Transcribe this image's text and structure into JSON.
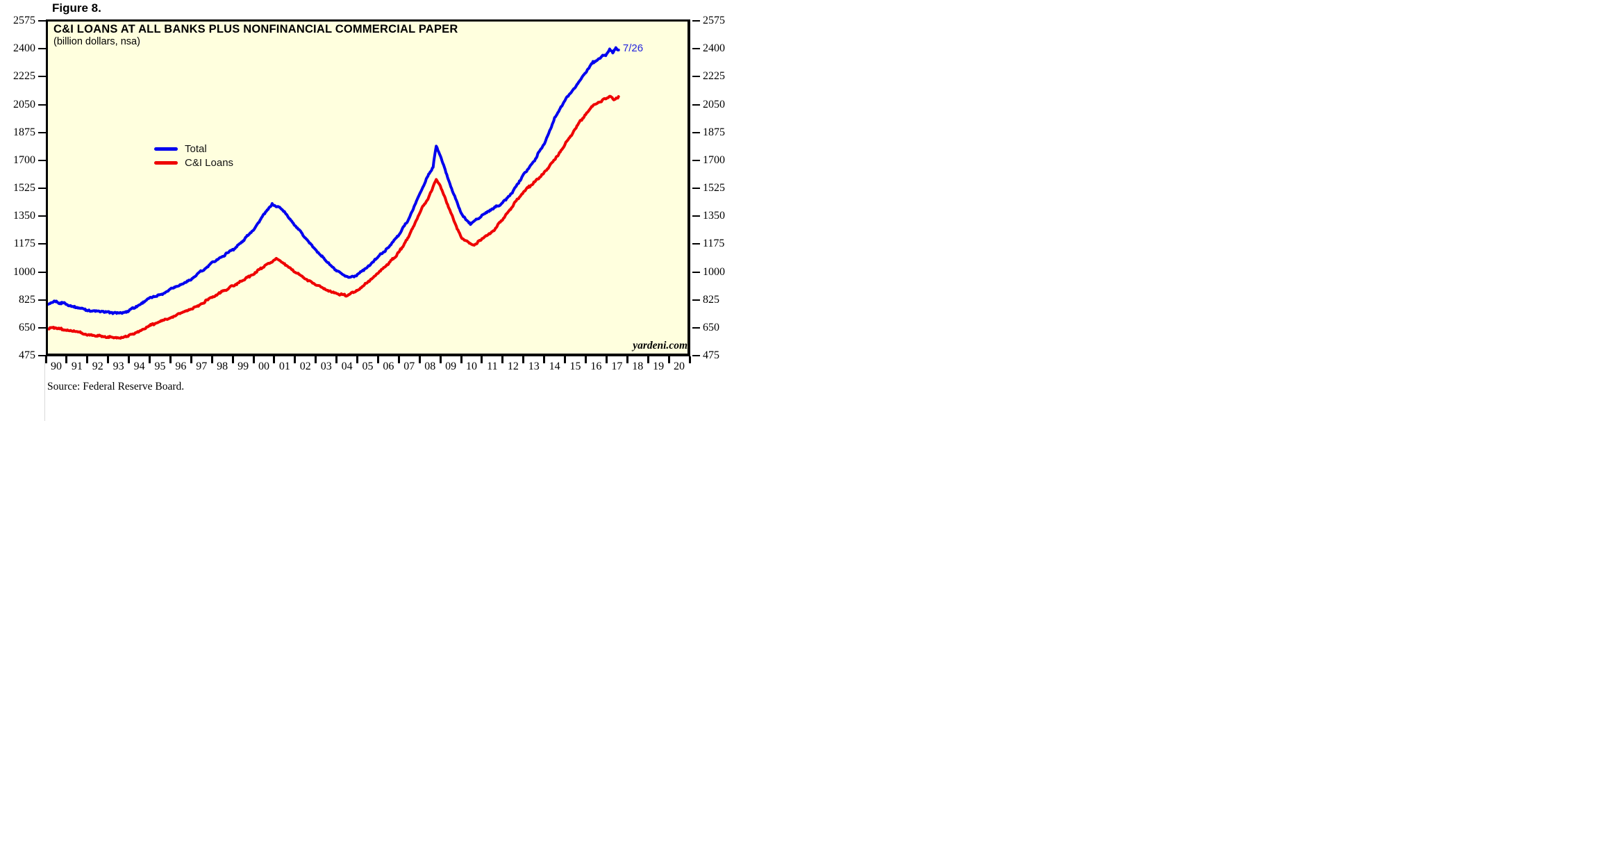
{
  "figure_label": "Figure 8.",
  "chart": {
    "title": "C&I LOANS AT ALL BANKS PLUS NONFINANCIAL COMMERCIAL PAPER",
    "subtitle": "(billion dollars, nsa)",
    "watermark": "yardeni.com",
    "source_note": "Source: Federal Reserve Board.",
    "colors": {
      "plot_background": "#ffffde",
      "axis": "#000000",
      "total_line": "#0000ee",
      "ci_loans_line": "#ee0000",
      "annotation_text": "#2222dd"
    }
  },
  "chart_data": {
    "type": "line",
    "title": "C&I LOANS AT ALL BANKS PLUS NONFINANCIAL COMMERCIAL PAPER",
    "subtitle": "(billion dollars, nsa)",
    "grid": false,
    "legend_position": "inside-upper-left",
    "x_axis": {
      "unit": "year",
      "start": 1990,
      "end": 2021,
      "tick_labels": [
        "90",
        "91",
        "92",
        "93",
        "94",
        "95",
        "96",
        "97",
        "98",
        "99",
        "00",
        "01",
        "02",
        "03",
        "04",
        "05",
        "06",
        "07",
        "08",
        "09",
        "10",
        "11",
        "12",
        "13",
        "14",
        "15",
        "16",
        "17",
        "18",
        "19",
        "20"
      ]
    },
    "y_axis": {
      "min": 475,
      "max": 2575,
      "tick_interval": 175,
      "ticks": [
        2575,
        2400,
        2225,
        2050,
        1875,
        1700,
        1525,
        1350,
        1175,
        1000,
        825,
        650,
        475
      ],
      "label_sides": "both"
    },
    "annotation": {
      "text": "7/26",
      "series": "Total",
      "x": 2017.62,
      "y": 2400
    },
    "series": [
      {
        "name": "Total",
        "color": "#0000ee",
        "points": [
          [
            1990.0,
            795
          ],
          [
            1990.4,
            812
          ],
          [
            1991.0,
            800
          ],
          [
            1991.5,
            775
          ],
          [
            1992.0,
            760
          ],
          [
            1992.5,
            752
          ],
          [
            1993.0,
            745
          ],
          [
            1993.6,
            740
          ],
          [
            1994.0,
            758
          ],
          [
            1994.5,
            795
          ],
          [
            1995.0,
            838
          ],
          [
            1995.5,
            856
          ],
          [
            1996.0,
            892
          ],
          [
            1996.5,
            920
          ],
          [
            1997.0,
            955
          ],
          [
            1997.5,
            1005
          ],
          [
            1998.0,
            1055
          ],
          [
            1998.5,
            1098
          ],
          [
            1999.0,
            1140
          ],
          [
            1999.5,
            1195
          ],
          [
            2000.0,
            1265
          ],
          [
            2000.5,
            1360
          ],
          [
            2000.9,
            1425
          ],
          [
            2001.3,
            1398
          ],
          [
            2001.6,
            1360
          ],
          [
            2002.0,
            1290
          ],
          [
            2002.5,
            1215
          ],
          [
            2003.0,
            1140
          ],
          [
            2003.5,
            1065
          ],
          [
            2004.0,
            1008
          ],
          [
            2004.6,
            962
          ],
          [
            2005.0,
            985
          ],
          [
            2005.5,
            1035
          ],
          [
            2006.0,
            1095
          ],
          [
            2006.5,
            1155
          ],
          [
            2007.0,
            1230
          ],
          [
            2007.5,
            1340
          ],
          [
            2008.0,
            1490
          ],
          [
            2008.4,
            1600
          ],
          [
            2008.65,
            1660
          ],
          [
            2008.8,
            1788
          ],
          [
            2009.0,
            1730
          ],
          [
            2009.5,
            1540
          ],
          [
            2010.0,
            1365
          ],
          [
            2010.45,
            1298
          ],
          [
            2011.0,
            1355
          ],
          [
            2011.5,
            1392
          ],
          [
            2012.0,
            1432
          ],
          [
            2012.5,
            1505
          ],
          [
            2013.0,
            1610
          ],
          [
            2013.5,
            1695
          ],
          [
            2014.0,
            1805
          ],
          [
            2014.5,
            1965
          ],
          [
            2015.0,
            2080
          ],
          [
            2015.5,
            2160
          ],
          [
            2016.0,
            2250
          ],
          [
            2016.35,
            2315
          ],
          [
            2016.7,
            2345
          ],
          [
            2017.0,
            2365
          ],
          [
            2017.15,
            2395
          ],
          [
            2017.3,
            2372
          ],
          [
            2017.45,
            2400
          ],
          [
            2017.58,
            2392
          ]
        ]
      },
      {
        "name": "C&I Loans",
        "color": "#ee0000",
        "points": [
          [
            1990.0,
            642
          ],
          [
            1990.4,
            648
          ],
          [
            1991.0,
            636
          ],
          [
            1991.5,
            622
          ],
          [
            1992.0,
            610
          ],
          [
            1992.5,
            600
          ],
          [
            1993.0,
            592
          ],
          [
            1993.6,
            586
          ],
          [
            1994.0,
            600
          ],
          [
            1994.5,
            628
          ],
          [
            1995.0,
            662
          ],
          [
            1995.5,
            686
          ],
          [
            1996.0,
            712
          ],
          [
            1996.5,
            738
          ],
          [
            1997.0,
            768
          ],
          [
            1997.5,
            802
          ],
          [
            1998.0,
            838
          ],
          [
            1998.5,
            876
          ],
          [
            1999.0,
            912
          ],
          [
            1999.5,
            948
          ],
          [
            2000.0,
            988
          ],
          [
            2000.5,
            1035
          ],
          [
            2001.1,
            1082
          ],
          [
            2001.5,
            1050
          ],
          [
            2002.0,
            1002
          ],
          [
            2002.5,
            958
          ],
          [
            2003.0,
            920
          ],
          [
            2003.5,
            888
          ],
          [
            2004.0,
            862
          ],
          [
            2004.5,
            852
          ],
          [
            2005.0,
            888
          ],
          [
            2005.5,
            932
          ],
          [
            2006.0,
            992
          ],
          [
            2006.5,
            1052
          ],
          [
            2007.0,
            1122
          ],
          [
            2007.5,
            1225
          ],
          [
            2008.0,
            1372
          ],
          [
            2008.4,
            1462
          ],
          [
            2008.8,
            1580
          ],
          [
            2009.0,
            1535
          ],
          [
            2009.5,
            1372
          ],
          [
            2010.0,
            1215
          ],
          [
            2010.55,
            1166
          ],
          [
            2011.0,
            1205
          ],
          [
            2011.5,
            1252
          ],
          [
            2012.0,
            1330
          ],
          [
            2012.5,
            1420
          ],
          [
            2013.0,
            1500
          ],
          [
            2013.5,
            1560
          ],
          [
            2014.0,
            1622
          ],
          [
            2014.5,
            1700
          ],
          [
            2015.0,
            1800
          ],
          [
            2015.5,
            1900
          ],
          [
            2016.0,
            1992
          ],
          [
            2016.4,
            2052
          ],
          [
            2016.8,
            2075
          ],
          [
            2017.0,
            2088
          ],
          [
            2017.2,
            2105
          ],
          [
            2017.35,
            2085
          ],
          [
            2017.58,
            2100
          ]
        ]
      }
    ]
  }
}
